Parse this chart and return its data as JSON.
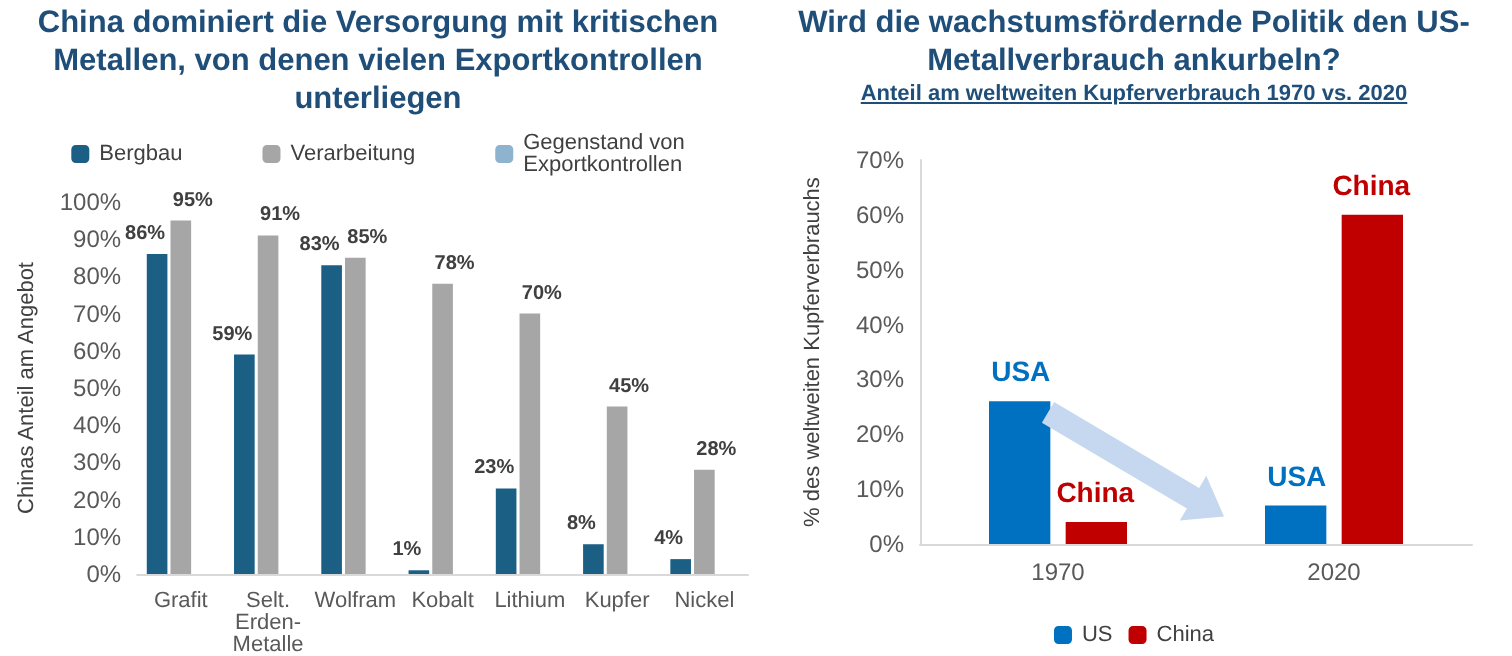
{
  "chart_data": [
    {
      "type": "bar",
      "title": "China dominiert die Versorgung mit kritischen Metallen, von denen vielen Exportkontrollen unterliegen",
      "ylabel": "Chinas Anteil am Angebot",
      "categories": [
        "Grafit",
        "Selt. Erden-Metalle",
        "Wolfram",
        "Kobalt",
        "Lithium",
        "Kupfer",
        "Nickel"
      ],
      "series": [
        {
          "name": "Bergbau",
          "color": "#1b5f85",
          "values": [
            86,
            59,
            83,
            1,
            23,
            8,
            4
          ],
          "value_labels": [
            "86%",
            "59%",
            "83%",
            "1%",
            "23%",
            "8%",
            "4%"
          ]
        },
        {
          "name": "Verarbeitung",
          "color": "#a6a6a6",
          "values": [
            95,
            91,
            85,
            78,
            70,
            45,
            28
          ],
          "value_labels": [
            "95%",
            "91%",
            "85%",
            "78%",
            "70%",
            "45%",
            "28%"
          ]
        },
        {
          "name": "Gegenstand von Exportkontrollen",
          "color": "#8db3cf",
          "values": [
            null,
            null,
            null,
            null,
            null,
            null,
            null
          ]
        }
      ],
      "ylim": [
        0,
        100
      ],
      "yticks": [
        {
          "value": 0,
          "label": "0%"
        },
        {
          "value": 10,
          "label": "10%"
        },
        {
          "value": 20,
          "label": "20%"
        },
        {
          "value": 30,
          "label": "30%"
        },
        {
          "value": 40,
          "label": "40%"
        },
        {
          "value": 50,
          "label": "50%"
        },
        {
          "value": 60,
          "label": "60%"
        },
        {
          "value": 70,
          "label": "70%"
        },
        {
          "value": 80,
          "label": "80%"
        },
        {
          "value": 90,
          "label": "90%"
        },
        {
          "value": 100,
          "label": "100%"
        }
      ],
      "grid": false,
      "legend": "top"
    },
    {
      "type": "bar",
      "title": "Wird die wachstumsfördernde Politik den US-Metallverbrauch ankurbeln?",
      "subtitle": "Anteil am weltweiten Kupferverbrauch 1970 vs. 2020",
      "ylabel": "% des weltweiten Kupferverbrauchs",
      "categories": [
        "1970",
        "2020"
      ],
      "series": [
        {
          "name": "US",
          "color": "#0070c0",
          "values": [
            26,
            7
          ]
        },
        {
          "name": "China",
          "color": "#c00000",
          "values": [
            4,
            60
          ]
        }
      ],
      "annotations": [
        {
          "text": "USA",
          "x": "1970",
          "y": 26
        },
        {
          "text": "China",
          "x": "1970",
          "y": 4
        },
        {
          "text": "USA",
          "x": "2020",
          "y": 7
        },
        {
          "text": "China",
          "x": "2020",
          "y": 60
        }
      ],
      "ylim": [
        0,
        70
      ],
      "yticks": [
        {
          "value": 0,
          "label": "0%"
        },
        {
          "value": 10,
          "label": "10%"
        },
        {
          "value": 20,
          "label": "20%"
        },
        {
          "value": 30,
          "label": "30%"
        },
        {
          "value": 40,
          "label": "40%"
        },
        {
          "value": 50,
          "label": "50%"
        },
        {
          "value": 60,
          "label": "60%"
        },
        {
          "value": 70,
          "label": "70%"
        }
      ],
      "grid": false,
      "legend": "bottom"
    }
  ]
}
